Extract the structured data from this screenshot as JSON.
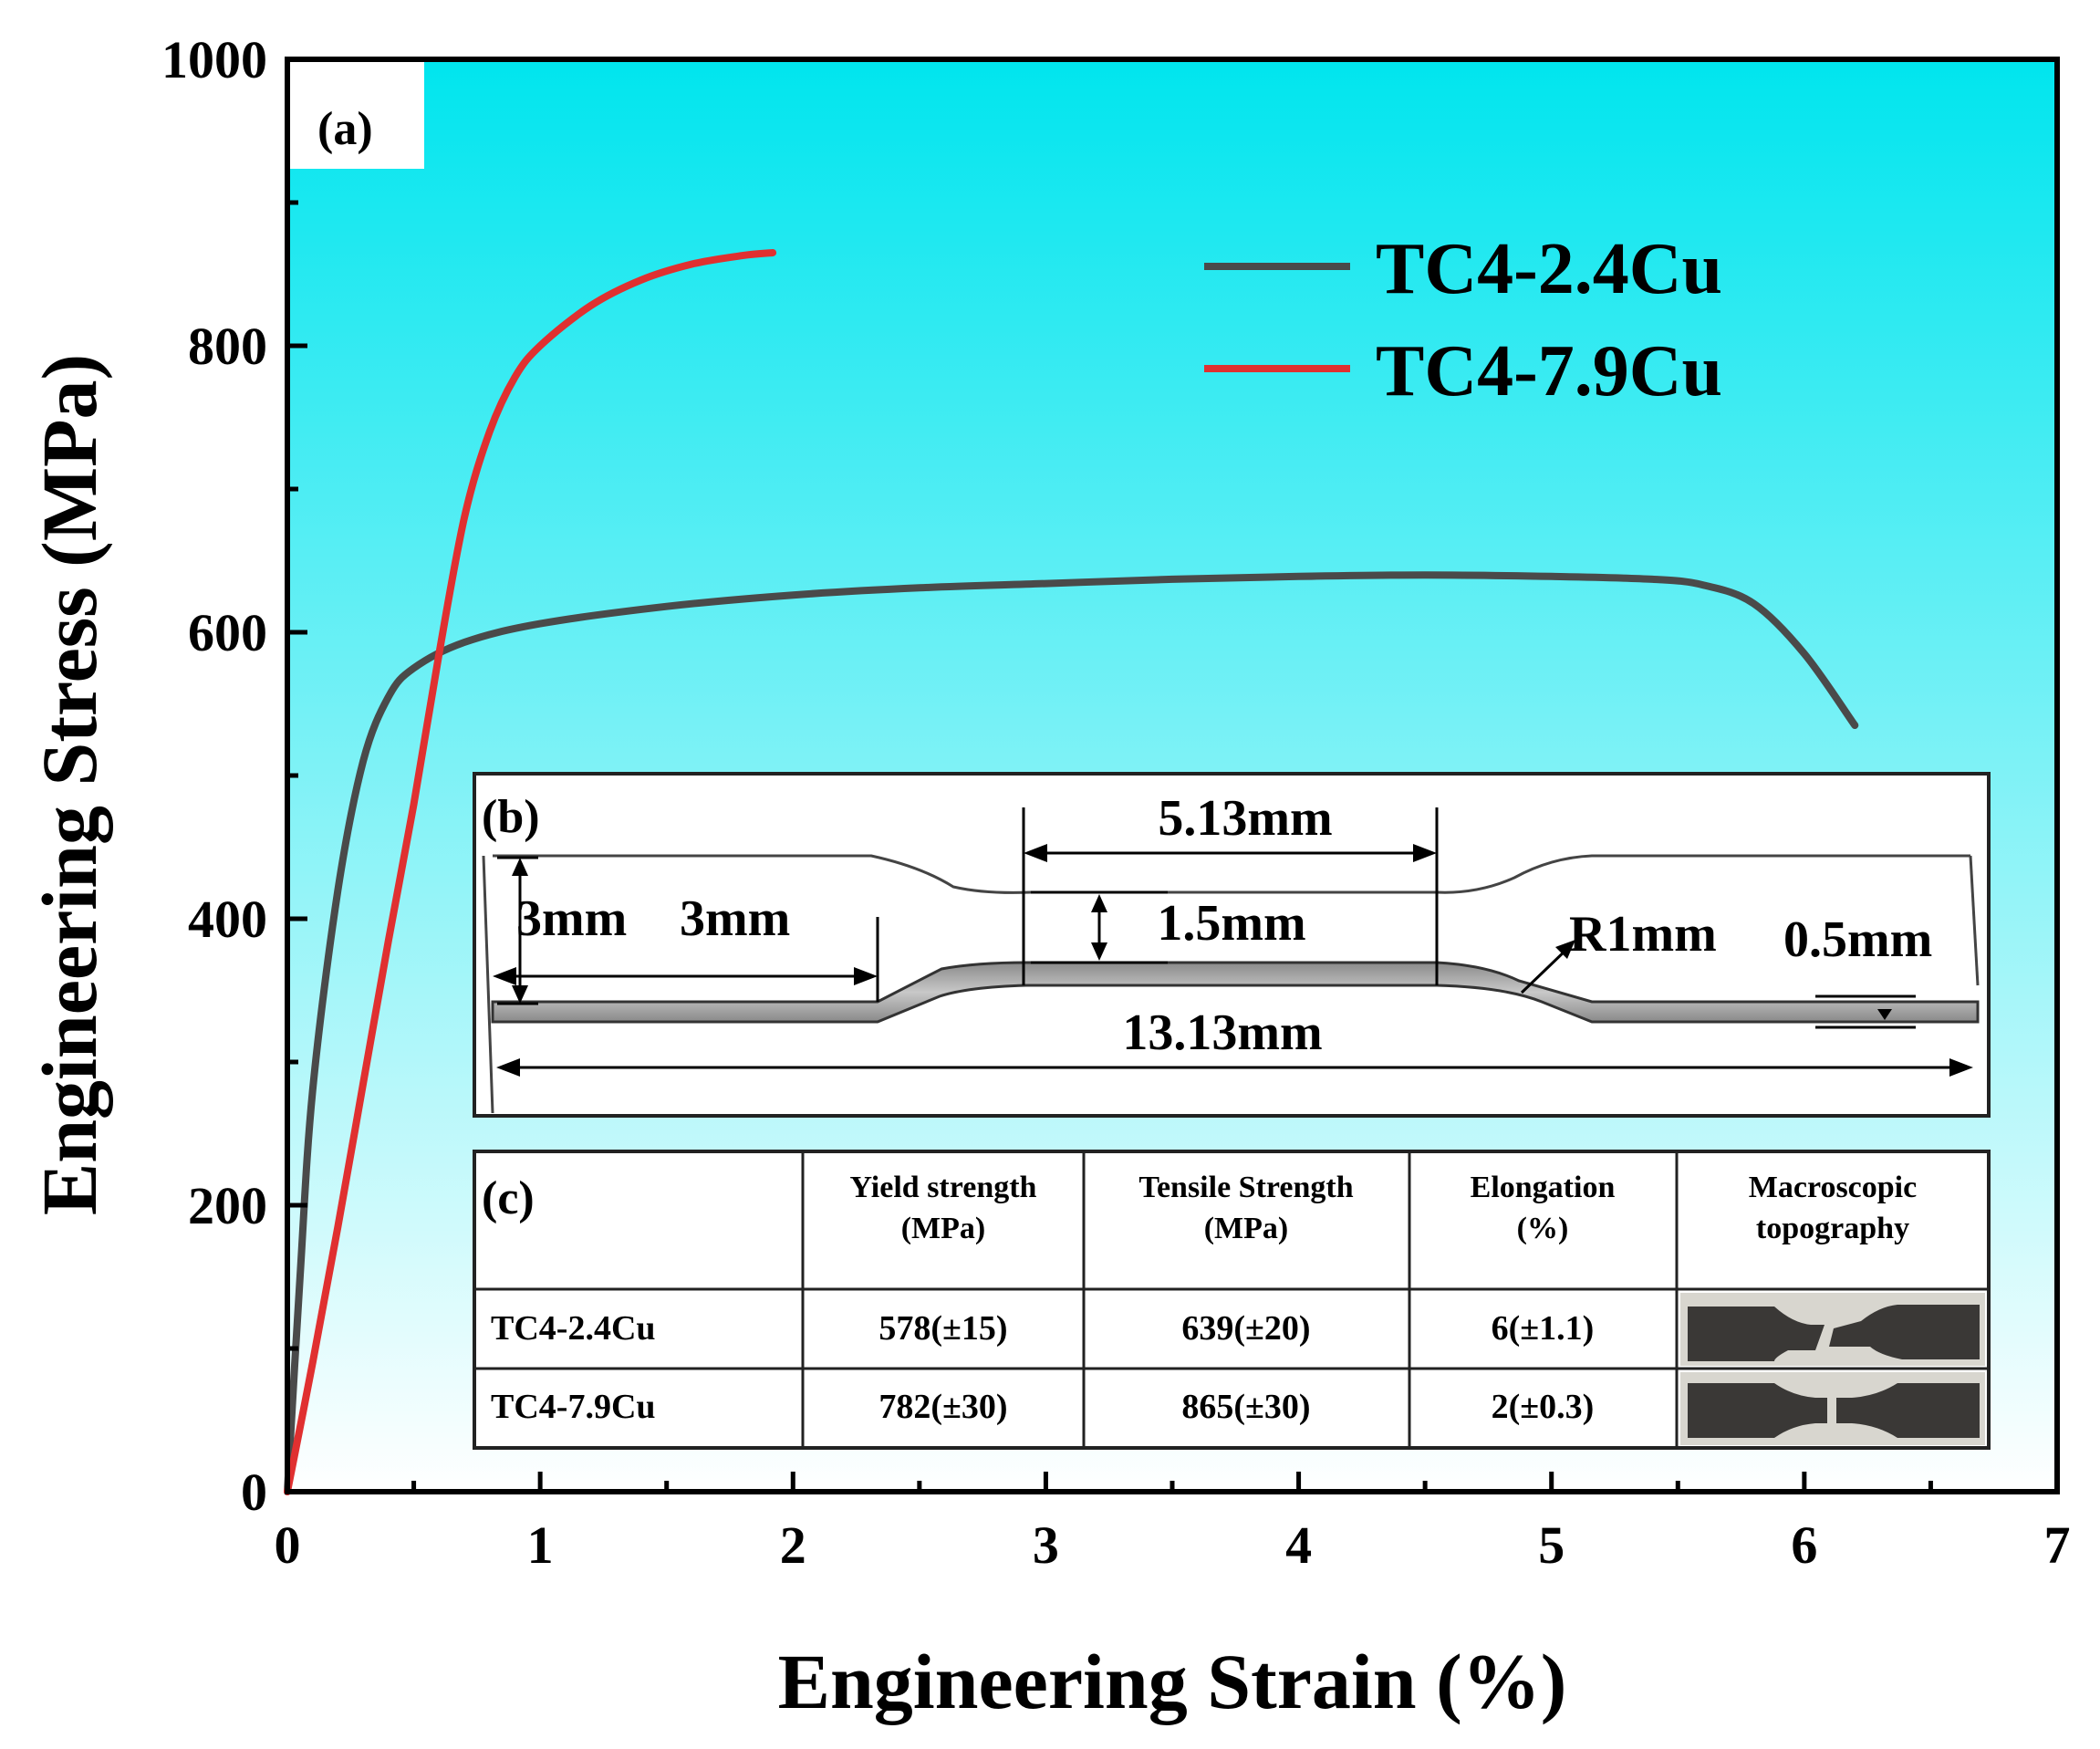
{
  "chart_data": {
    "type": "line",
    "xlabel": "Engineering Strain (%)",
    "ylabel": "Engineering Stress (MPa)",
    "xlim": [
      0,
      7
    ],
    "ylim": [
      0,
      1000
    ],
    "x_ticks": [
      "0",
      "1",
      "2",
      "3",
      "4",
      "5",
      "6",
      "7"
    ],
    "y_ticks": [
      "0",
      "200",
      "400",
      "600",
      "800",
      "1000"
    ],
    "legend_position": "top-right",
    "series": [
      {
        "name": "TC4-2.4Cu",
        "color": "#4a4a4a",
        "x": [
          0,
          0.05,
          0.1,
          0.2,
          0.3,
          0.4,
          0.5,
          0.7,
          1.0,
          1.5,
          2.0,
          2.5,
          3.0,
          3.5,
          4.0,
          4.5,
          5.0,
          5.4,
          5.6,
          5.8,
          6.0,
          6.2
        ],
        "y": [
          0,
          150,
          280,
          420,
          510,
          555,
          575,
          593,
          606,
          618,
          626,
          631,
          634,
          637,
          639,
          640,
          639,
          637,
          633,
          620,
          585,
          535
        ]
      },
      {
        "name": "TC4-7.9Cu",
        "color": "#e03030",
        "x": [
          0,
          0.1,
          0.2,
          0.3,
          0.4,
          0.5,
          0.6,
          0.7,
          0.8,
          0.9,
          1.0,
          1.2,
          1.4,
          1.6,
          1.8,
          1.92
        ],
        "y": [
          0,
          90,
          185,
          285,
          385,
          480,
          585,
          680,
          740,
          778,
          800,
          828,
          846,
          857,
          863,
          865
        ]
      }
    ],
    "panel_a_label": "(a)",
    "background_gradient": [
      "#00e5ee",
      "#ffffff"
    ]
  },
  "inset_b": {
    "label": "(b)",
    "dims": {
      "overall_length": "13.13mm",
      "gauge_length": "5.13mm",
      "gauge_height": "1.5mm",
      "grip_height": "3mm",
      "grip_length": "3mm",
      "radius": "R1mm",
      "thickness": "0.5mm"
    }
  },
  "inset_c": {
    "label": "(c)",
    "headers": [
      [
        "Yield strength",
        "(MPa)"
      ],
      [
        "Tensile Strength",
        "(MPa)"
      ],
      [
        "Elongation",
        "(%)"
      ],
      [
        "Macroscopic",
        "topography"
      ]
    ],
    "rows": [
      {
        "name": "TC4-2.4Cu",
        "yield": "578(±15)",
        "tensile": "639(±20)",
        "elongation": "6(±1.1)"
      },
      {
        "name": "TC4-7.9Cu",
        "yield": "782(±30)",
        "tensile": "865(±30)",
        "elongation": "2(±0.3)"
      }
    ]
  }
}
